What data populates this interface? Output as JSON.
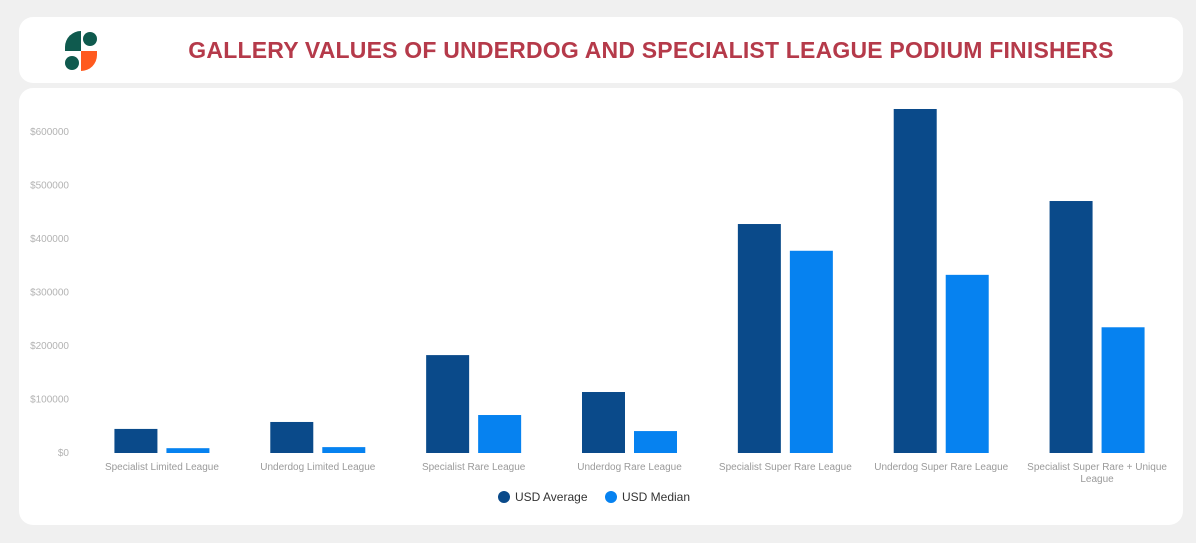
{
  "header": {
    "title": "Gallery Values of Underdog and Specialist League Podium Finishers",
    "logo_icon": "brand-s-logo",
    "logo_colors": {
      "top": "#0f5a4e",
      "bottom": "#ff5a1f"
    }
  },
  "chart_data": {
    "type": "bar",
    "title": "Gallery Values of Underdog and Specialist League Podium Finishers",
    "categories": [
      [
        "Specialist Limited League"
      ],
      [
        "Underdog Limited League"
      ],
      [
        "Specialist Rare League"
      ],
      [
        "Underdog Rare League"
      ],
      [
        "Specialist Super Rare League"
      ],
      [
        "Underdog Super Rare League"
      ],
      [
        "Specialist Super Rare + Unique",
        "League"
      ]
    ],
    "series": [
      {
        "name": "USD Average",
        "color": "#0a4a8a",
        "values": [
          45000,
          58000,
          183000,
          114000,
          428000,
          643000,
          471000
        ]
      },
      {
        "name": "USD Median",
        "color": "#0682f0",
        "values": [
          9000,
          11000,
          71000,
          41000,
          378000,
          333000,
          235000
        ]
      }
    ],
    "yticks": [
      "$0",
      "$100000",
      "$200000",
      "$300000",
      "$400000",
      "$500000",
      "$600000"
    ],
    "ylim": [
      0,
      650000
    ],
    "xlabel": "",
    "ylabel": "",
    "legend_position": "bottom-center",
    "grid": false
  }
}
